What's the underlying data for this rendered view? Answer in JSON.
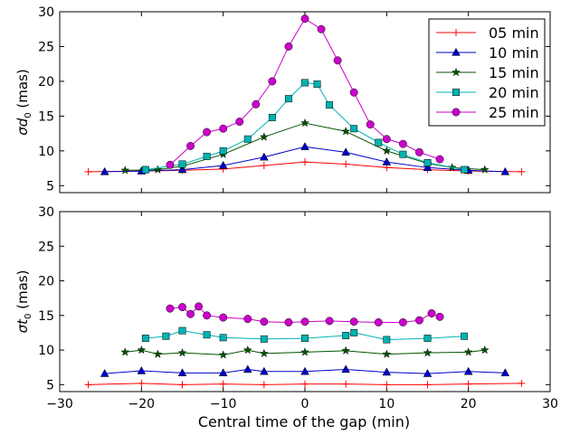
{
  "figure": {
    "xlabel": "Central time of the gap (min)"
  },
  "chart_data": [
    {
      "type": "line",
      "ylabel_main": "σd",
      "ylabel_sub": "0",
      "ylabel_unit": " (mas)",
      "xlim": [
        -30,
        30
      ],
      "ylim": [
        4,
        30
      ],
      "xticks": [
        "−30",
        "−20",
        "−10",
        "0",
        "10",
        "20",
        "30"
      ],
      "yticks": [
        5,
        10,
        15,
        20,
        25,
        30
      ],
      "xticklabels_visible": false,
      "legend": {
        "placement": "top-right"
      },
      "series": [
        {
          "name": "05 min",
          "color": "#ff0000",
          "marker": "plus",
          "x": [
            -26.5,
            -20,
            -15,
            -10,
            -5,
            0,
            5,
            10,
            15,
            20,
            26.5
          ],
          "y": [
            7.0,
            7.1,
            7.2,
            7.4,
            7.9,
            8.4,
            8.1,
            7.6,
            7.3,
            7.1,
            7.0
          ]
        },
        {
          "name": "10 min",
          "color": "#0000cc",
          "marker": "triangle",
          "x": [
            -24.5,
            -20,
            -15,
            -10,
            -5,
            0,
            5,
            10,
            15,
            20,
            24.5
          ],
          "y": [
            7.0,
            7.1,
            7.3,
            7.9,
            9.1,
            10.6,
            9.8,
            8.4,
            7.6,
            7.2,
            7.0
          ]
        },
        {
          "name": "15 min",
          "color": "#005500",
          "marker": "star",
          "x": [
            -22,
            -18,
            -15,
            -10,
            -5,
            0,
            5,
            10,
            15,
            18,
            22
          ],
          "y": [
            7.2,
            7.3,
            7.8,
            9.5,
            12.0,
            14.0,
            12.8,
            10.0,
            8.2,
            7.6,
            7.3
          ]
        },
        {
          "name": "20 min",
          "color": "#00b3b3",
          "marker": "square",
          "x": [
            -19.5,
            -15,
            -12,
            -10,
            -7,
            -4,
            -2,
            0,
            1.5,
            3,
            6,
            9,
            12,
            15,
            19.5
          ],
          "y": [
            7.3,
            8.1,
            9.2,
            10.0,
            11.7,
            14.8,
            17.5,
            19.8,
            19.6,
            16.6,
            13.2,
            11.2,
            9.5,
            8.3,
            7.3
          ]
        },
        {
          "name": "25 min",
          "color": "#cc00cc",
          "marker": "circle",
          "x": [
            -16.5,
            -14,
            -12,
            -10,
            -8,
            -6,
            -4,
            -2,
            0,
            2,
            4,
            6,
            8,
            10,
            12,
            14,
            16.5
          ],
          "y": [
            8.0,
            10.7,
            12.7,
            13.2,
            14.2,
            16.7,
            20.0,
            25.0,
            29.0,
            27.5,
            23.0,
            18.4,
            13.8,
            11.7,
            11.0,
            9.8,
            8.8
          ]
        }
      ]
    },
    {
      "type": "line",
      "ylabel_main": "σt",
      "ylabel_sub": "0",
      "ylabel_unit": " (mas)",
      "xlim": [
        -30,
        30
      ],
      "ylim": [
        4,
        30
      ],
      "xticks": [
        "−30",
        "−20",
        "−10",
        "0",
        "10",
        "20",
        "30"
      ],
      "yticks": [
        5,
        10,
        15,
        20,
        25,
        30
      ],
      "xticklabels_visible": true,
      "series": [
        {
          "name": "05 min",
          "color": "#ff0000",
          "marker": "plus",
          "x": [
            -26.5,
            -20,
            -15,
            -10,
            -5,
            0,
            5,
            10,
            15,
            20,
            26.5
          ],
          "y": [
            5.0,
            5.2,
            5.0,
            5.1,
            5.0,
            5.1,
            5.1,
            5.0,
            5.0,
            5.1,
            5.2
          ]
        },
        {
          "name": "10 min",
          "color": "#0000cc",
          "marker": "triangle",
          "x": [
            -24.5,
            -20,
            -15,
            -10,
            -7,
            -5,
            0,
            5,
            10,
            15,
            20,
            24.5
          ],
          "y": [
            6.6,
            7.0,
            6.7,
            6.7,
            7.2,
            6.9,
            6.9,
            7.2,
            6.8,
            6.6,
            6.9,
            6.7
          ]
        },
        {
          "name": "15 min",
          "color": "#005500",
          "marker": "star",
          "x": [
            -22,
            -20,
            -18,
            -15,
            -10,
            -7,
            -5,
            0,
            5,
            10,
            15,
            20,
            22
          ],
          "y": [
            9.7,
            10.0,
            9.4,
            9.6,
            9.3,
            10.0,
            9.5,
            9.7,
            9.9,
            9.4,
            9.6,
            9.7,
            10.0
          ]
        },
        {
          "name": "20 min",
          "color": "#00b3b3",
          "marker": "square",
          "x": [
            -19.5,
            -17,
            -15,
            -12,
            -10,
            -5,
            0,
            5,
            6,
            10,
            15,
            19.5
          ],
          "y": [
            11.7,
            12.0,
            12.8,
            12.2,
            11.8,
            11.6,
            11.7,
            12.1,
            12.5,
            11.5,
            11.7,
            12.0
          ]
        },
        {
          "name": "25 min",
          "color": "#cc00cc",
          "marker": "circle",
          "x": [
            -16.5,
            -15,
            -14,
            -13,
            -12,
            -10,
            -7,
            -5,
            -2,
            0,
            3,
            6,
            9,
            12,
            14,
            15.5,
            16.5
          ],
          "y": [
            16.0,
            16.2,
            15.2,
            16.3,
            15.0,
            14.7,
            14.5,
            14.1,
            14.0,
            14.1,
            14.2,
            14.1,
            14.0,
            14.0,
            14.3,
            15.3,
            14.8
          ]
        }
      ]
    }
  ]
}
